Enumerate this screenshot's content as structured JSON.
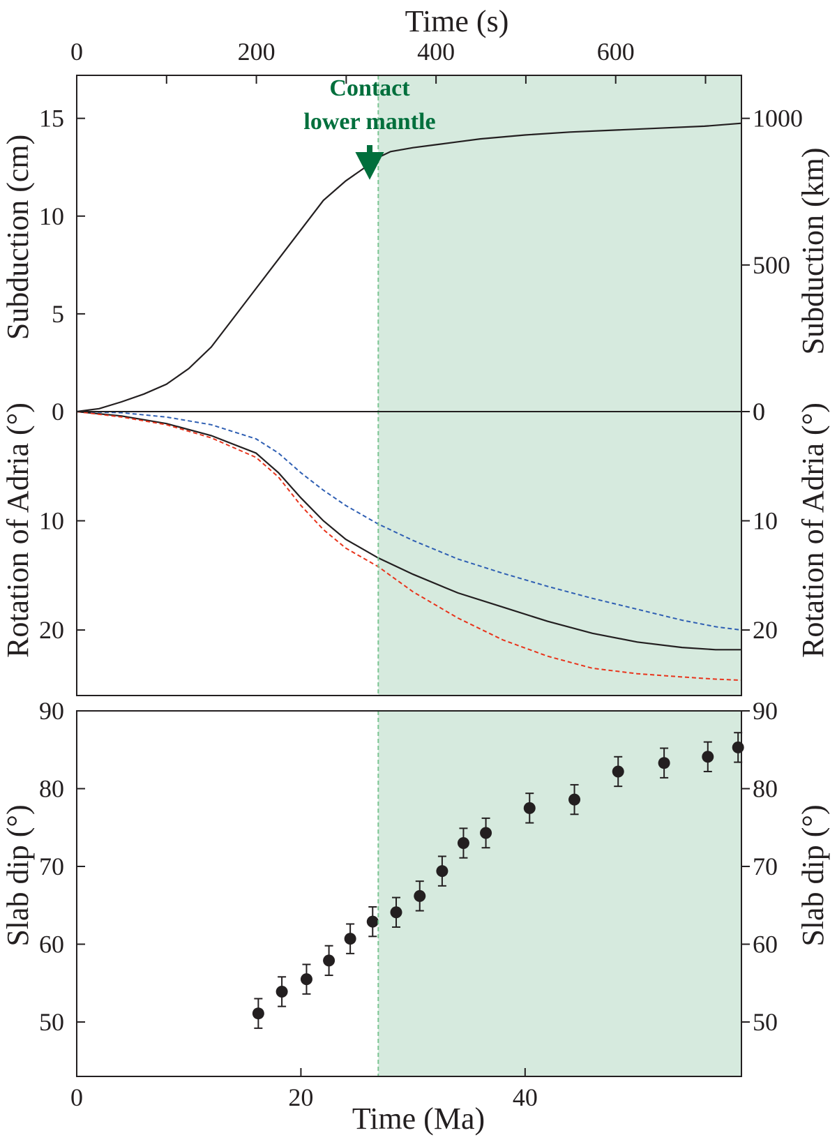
{
  "colors": {
    "shade": "#d6eade",
    "annotation": "#006f3c",
    "contact_line": "#7cc593",
    "axis": "#231f20",
    "mean": "#231f20",
    "upper": "#2f5fb3",
    "lower": "#e8341c"
  },
  "annotation": {
    "line1": "Contact",
    "line2": "lower mantle"
  },
  "chart_data": [
    {
      "panel": "subduction",
      "type": "line",
      "top_xlabel": "Time (s)",
      "top_xlim": [
        0,
        740
      ],
      "top_xticks": [
        0,
        200,
        400,
        600
      ],
      "top_xtick_labels": [
        "0",
        "200",
        "400",
        "600"
      ],
      "xlim": [
        0,
        59.3
      ],
      "ylabel": "Subduction (cm)",
      "ylim": [
        0,
        17.2
      ],
      "yticks": [
        0,
        5,
        10,
        15
      ],
      "ytick_labels": [
        "0",
        "5",
        "10",
        "15"
      ],
      "y2label": "Subduction (km)",
      "y2ticks": [
        0,
        500,
        1000
      ],
      "y2tick_labels": [
        "0",
        "500",
        "1000"
      ],
      "shaded_from_x": 26.9,
      "contact_x": 26.9,
      "series": [
        {
          "role": "mean",
          "x": [
            0,
            2,
            4,
            6,
            8,
            10,
            12,
            14,
            16,
            18,
            20,
            22,
            24,
            26,
            26.9,
            28,
            30,
            32,
            34,
            36,
            40,
            44,
            48,
            52,
            56,
            59.3
          ],
          "y": [
            0,
            0.15,
            0.5,
            0.9,
            1.4,
            2.2,
            3.3,
            4.8,
            6.3,
            7.8,
            9.3,
            10.8,
            11.8,
            12.6,
            13.0,
            13.3,
            13.5,
            13.65,
            13.8,
            13.95,
            14.15,
            14.3,
            14.4,
            14.5,
            14.6,
            14.75
          ]
        }
      ]
    },
    {
      "panel": "rotation",
      "type": "line",
      "xlim": [
        0,
        59.3
      ],
      "ylabel": "Rotation of Adria (°)",
      "ylim": [
        0,
        26
      ],
      "y_inverted": true,
      "yticks": [
        10,
        20
      ],
      "ytick_labels": [
        "10",
        "20"
      ],
      "y2label": "Rotation of Adria (°)",
      "y2ticks": [
        0,
        10,
        20
      ],
      "y2tick_labels": [
        "0",
        "10",
        "20"
      ],
      "series": [
        {
          "role": "mean",
          "style": "solid",
          "x": [
            0,
            4,
            8,
            12,
            16,
            18,
            20,
            22,
            24,
            26.9,
            30,
            34,
            38,
            42,
            46,
            50,
            54,
            57,
            59.3
          ],
          "y": [
            0,
            0.4,
            1.1,
            2.2,
            3.8,
            5.6,
            7.9,
            10.0,
            11.7,
            13.4,
            14.9,
            16.6,
            17.9,
            19.2,
            20.3,
            21.1,
            21.6,
            21.8,
            21.8
          ]
        },
        {
          "role": "upper",
          "style": "dashed",
          "x": [
            0,
            4,
            8,
            12,
            16,
            18,
            20,
            22,
            24,
            26.9,
            30,
            34,
            38,
            42,
            46,
            50,
            54,
            57,
            59.3
          ],
          "y": [
            0,
            0.1,
            0.5,
            1.2,
            2.5,
            3.8,
            5.6,
            7.2,
            8.6,
            10.3,
            11.8,
            13.5,
            14.8,
            16.0,
            17.1,
            18.1,
            19.1,
            19.7,
            20.0
          ]
        },
        {
          "role": "lower",
          "style": "dashed",
          "x": [
            0,
            4,
            8,
            12,
            16,
            18,
            20,
            22,
            24,
            26.9,
            30,
            34,
            38,
            42,
            46,
            50,
            54,
            57,
            59.3
          ],
          "y": [
            0,
            0.5,
            1.2,
            2.4,
            4.2,
            6.0,
            8.6,
            10.8,
            12.5,
            14.2,
            16.5,
            18.9,
            20.9,
            22.4,
            23.5,
            24.0,
            24.3,
            24.5,
            24.6
          ]
        }
      ]
    },
    {
      "panel": "slab_dip",
      "type": "scatter",
      "xlabel": "Time (Ma)",
      "xlim": [
        0,
        59.3
      ],
      "xticks": [
        0,
        20,
        40
      ],
      "xtick_labels": [
        "0",
        "20",
        "40"
      ],
      "ylabel": "Slab dip (°)",
      "ylim": [
        43,
        90
      ],
      "yticks": [
        50,
        60,
        70,
        80,
        90
      ],
      "ytick_labels": [
        "50",
        "60",
        "70",
        "80",
        "90"
      ],
      "y2label": "Slab dip (°)",
      "y2ticks": [
        50,
        60,
        70,
        80,
        90
      ],
      "y2tick_labels": [
        "50",
        "60",
        "70",
        "80",
        "90"
      ],
      "x": [
        16.2,
        18.3,
        20.5,
        22.5,
        24.4,
        26.4,
        28.5,
        30.6,
        32.6,
        34.5,
        36.5,
        40.4,
        44.4,
        48.3,
        52.4,
        56.3,
        59.0
      ],
      "y": [
        51.1,
        53.9,
        55.5,
        57.9,
        60.7,
        62.9,
        64.1,
        66.2,
        69.4,
        73.0,
        74.3,
        77.5,
        78.6,
        82.2,
        83.3,
        84.1,
        85.3
      ],
      "error": 1.9
    }
  ]
}
